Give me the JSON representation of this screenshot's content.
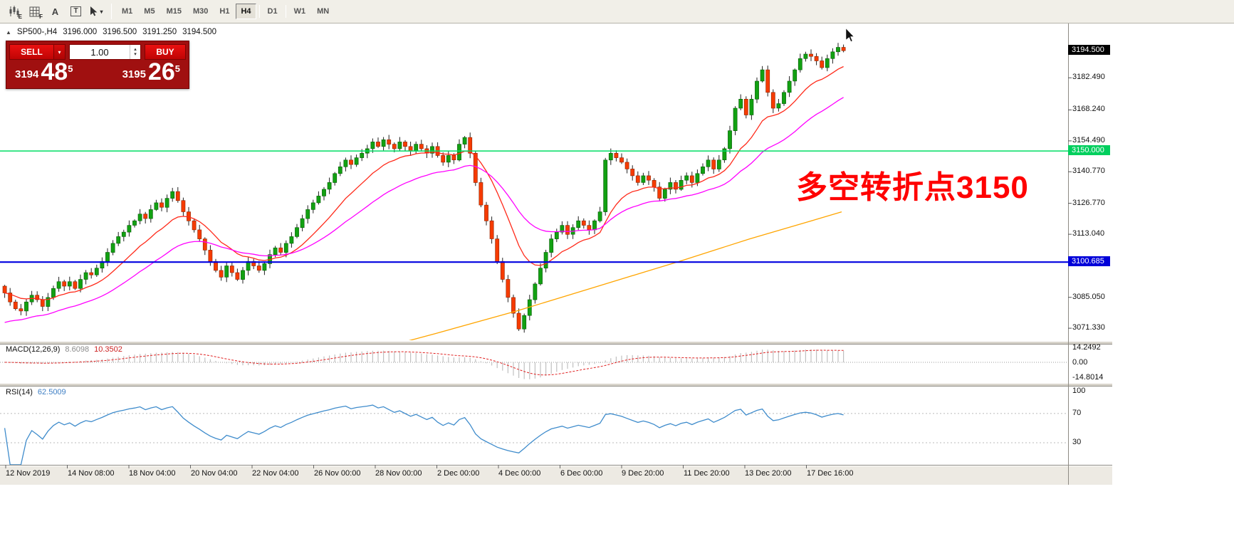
{
  "icons": {
    "caret_down": "▾",
    "spin_up": "▴",
    "spin_down": "▾",
    "collapse_triangle": "▲",
    "letter_a": "A",
    "letter_t": "T",
    "sub_e": "E",
    "sub_f": "F"
  },
  "toolbar": {
    "timeframes": [
      "M1",
      "M5",
      "M15",
      "M30",
      "H1",
      "H4",
      "D1",
      "W1",
      "MN"
    ],
    "active_timeframe": "H4"
  },
  "chart": {
    "symbol_header": {
      "symbol": "SP500-,H4",
      "ohlc": [
        "3196.000",
        "3196.500",
        "3191.250",
        "3194.500"
      ]
    },
    "trade_panel": {
      "sell_label": "SELL",
      "buy_label": "BUY",
      "volume": "1.00",
      "sell_price": {
        "main": "3194",
        "pips": "48",
        "sup": "5"
      },
      "buy_price": {
        "main": "3195",
        "pips": "26",
        "sup": "5"
      }
    },
    "annotation_text": "多空转折点3150",
    "current_price": {
      "label": "3194.500",
      "value": 3194.5
    },
    "levels": [
      {
        "label": "3150.000",
        "value": 3150.0,
        "color": "#00dd64"
      },
      {
        "label": "3100.685",
        "value": 3100.685,
        "color": "#0000e0"
      }
    ],
    "price_ticks": [
      {
        "label": "3182.490",
        "value": 3182.49
      },
      {
        "label": "3168.240",
        "value": 3168.24
      },
      {
        "label": "3154.490",
        "value": 3154.49
      },
      {
        "label": "3140.770",
        "value": 3140.77
      },
      {
        "label": "3126.770",
        "value": 3126.77
      },
      {
        "label": "3113.040",
        "value": 3113.04
      },
      {
        "label": "3085.050",
        "value": 3085.05
      },
      {
        "label": "3071.330",
        "value": 3071.33
      }
    ]
  },
  "indicators": {
    "macd": {
      "name": "MACD(12,26,9)",
      "value_main": "8.6098",
      "value_signal": "10.3502",
      "axis": [
        "14.2492",
        "0.00",
        "-14.8014"
      ]
    },
    "rsi": {
      "name": "RSI(14)",
      "value": "62.5009",
      "axis": [
        "100",
        "70",
        "30"
      ],
      "levels": [
        70,
        30
      ]
    }
  },
  "time_axis": [
    "12 Nov 2019",
    "14 Nov 08:00",
    "18 Nov 04:00",
    "20 Nov 04:00",
    "22 Nov 04:00",
    "26 Nov 00:00",
    "28 Nov 00:00",
    "2 Dec 00:00",
    "4 Dec 00:00",
    "6 Dec 00:00",
    "9 Dec 20:00",
    "11 Dec 20:00",
    "13 Dec 20:00",
    "17 Dec 16:00"
  ],
  "chart_data": {
    "type": "candlestick",
    "symbol": "SP500-",
    "timeframe": "H4",
    "price_range": [
      3066,
      3205
    ],
    "closes": [
      3087,
      3083,
      3080,
      3079,
      3083,
      3086,
      3084,
      3081,
      3085,
      3089,
      3092,
      3090,
      3092,
      3089,
      3093,
      3096,
      3095,
      3098,
      3101,
      3105,
      3109,
      3112,
      3114,
      3117,
      3119,
      3122,
      3120,
      3124,
      3127,
      3125,
      3129,
      3132,
      3128,
      3123,
      3119,
      3115,
      3111,
      3106,
      3101,
      3097,
      3094,
      3099,
      3096,
      3093,
      3097,
      3101,
      3099,
      3097,
      3100,
      3104,
      3107,
      3105,
      3109,
      3112,
      3116,
      3120,
      3124,
      3127,
      3130,
      3133,
      3136,
      3140,
      3143,
      3146,
      3144,
      3147,
      3149,
      3151,
      3154,
      3152,
      3155,
      3153,
      3151,
      3154,
      3152,
      3150,
      3153,
      3151,
      3149,
      3152,
      3148,
      3145,
      3148,
      3146,
      3153,
      3156,
      3149,
      3136,
      3126,
      3119,
      3111,
      3101,
      3093,
      3085,
      3078,
      3071,
      3077,
      3084,
      3091,
      3098,
      3105,
      3111,
      3114,
      3117,
      3113,
      3116,
      3119,
      3117,
      3115,
      3119,
      3123,
      3146,
      3149,
      3147,
      3145,
      3142,
      3139,
      3136,
      3139,
      3137,
      3134,
      3129,
      3133,
      3136,
      3133,
      3137,
      3139,
      3136,
      3140,
      3143,
      3146,
      3142,
      3146,
      3151,
      3159,
      3169,
      3173,
      3166,
      3173,
      3181,
      3186,
      3176,
      3169,
      3171,
      3176,
      3181,
      3186,
      3191,
      3193,
      3192,
      3190,
      3187,
      3191,
      3194,
      3196,
      3194.5
    ],
    "ma_fast": {
      "type": "ema",
      "period": 13,
      "color": "#ff2a1a"
    },
    "ma_mid": {
      "type": "ema",
      "period": 30,
      "color": "#ff00ff"
    },
    "ma_slow": {
      "color": "#ffa500",
      "points": [
        [
          66,
          3060
        ],
        [
          80,
          3069
        ],
        [
          95,
          3079
        ],
        [
          110,
          3090
        ],
        [
          125,
          3101
        ],
        [
          138,
          3111
        ],
        [
          148,
          3118
        ],
        [
          155,
          3123
        ]
      ]
    },
    "colors": {
      "up": "#12a112",
      "up_edge": "#075c07",
      "down": "#f63b00",
      "down_edge": "#8e2300",
      "wick": "#222222",
      "macd_hist": "#c0c0c0",
      "macd_signal": "#e02020",
      "rsi_line": "#3f8ccc"
    }
  }
}
